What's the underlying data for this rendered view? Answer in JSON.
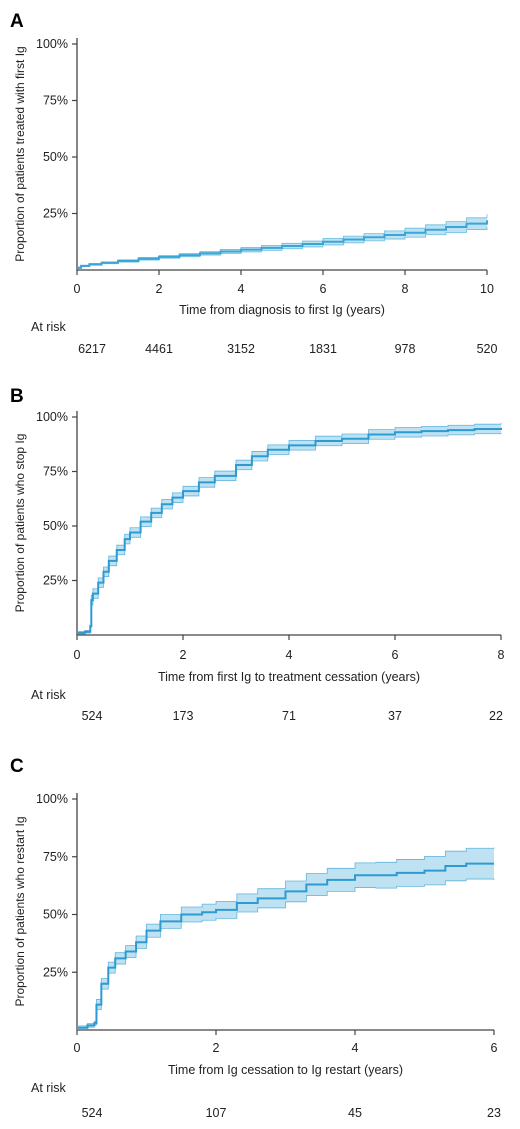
{
  "chart_data": [
    {
      "id": "A",
      "type": "line",
      "panel_label": "A",
      "xlabel": "Time from diagnosis to first Ig (years)",
      "ylabel": "Proportion of patients treated with first Ig",
      "xlim": [
        0,
        10
      ],
      "ylim": [
        0,
        1
      ],
      "xticks": [
        0,
        2,
        4,
        6,
        8,
        10
      ],
      "xtick_labels": [
        "0",
        "2",
        "4",
        "6",
        "8",
        "10"
      ],
      "yticks": [
        0.25,
        0.5,
        0.75,
        1.0
      ],
      "ytick_labels": [
        "25%",
        "50%",
        "75%",
        "100%"
      ],
      "grid": false,
      "line_color": "#3aa6d6",
      "band_color": "#a9d8ef",
      "series": [
        {
          "x": [
            0,
            0.1,
            0.3,
            0.6,
            1.0,
            1.5,
            2.0,
            2.5,
            3.0,
            3.5,
            4.0,
            4.5,
            5.0,
            5.5,
            6.0,
            6.5,
            7.0,
            7.5,
            8.0,
            8.5,
            9.0,
            9.5,
            10.0
          ],
          "y": [
            0.01,
            0.018,
            0.025,
            0.032,
            0.04,
            0.05,
            0.058,
            0.066,
            0.074,
            0.082,
            0.09,
            0.098,
            0.106,
            0.115,
            0.125,
            0.135,
            0.145,
            0.155,
            0.165,
            0.178,
            0.19,
            0.205,
            0.22
          ],
          "lower": [
            0.007,
            0.015,
            0.021,
            0.028,
            0.035,
            0.044,
            0.052,
            0.059,
            0.066,
            0.073,
            0.08,
            0.087,
            0.094,
            0.102,
            0.111,
            0.12,
            0.129,
            0.137,
            0.145,
            0.156,
            0.166,
            0.179,
            0.192
          ],
          "upper": [
            0.013,
            0.021,
            0.029,
            0.036,
            0.045,
            0.056,
            0.064,
            0.073,
            0.082,
            0.091,
            0.1,
            0.109,
            0.118,
            0.128,
            0.139,
            0.15,
            0.161,
            0.173,
            0.185,
            0.2,
            0.214,
            0.231,
            0.248
          ]
        }
      ],
      "at_risk": {
        "title": "At risk",
        "times": [
          0,
          2,
          4,
          6,
          8,
          10
        ],
        "values": [
          "6217",
          "4461",
          "3152",
          "1831",
          "978",
          "520"
        ]
      }
    },
    {
      "id": "B",
      "type": "line",
      "panel_label": "B",
      "xlabel": "Time from first Ig to treatment cessation (years)",
      "ylabel": "Proportion of patients who stop Ig",
      "xlim": [
        0,
        8
      ],
      "ylim": [
        0,
        1
      ],
      "xticks": [
        0,
        2,
        4,
        6,
        8
      ],
      "xtick_labels": [
        "0",
        "2",
        "4",
        "6",
        "8"
      ],
      "yticks": [
        0.25,
        0.5,
        0.75,
        1.0
      ],
      "ytick_labels": [
        "25%",
        "50%",
        "75%",
        "100%"
      ],
      "grid": false,
      "line_color": "#2d9bd2",
      "band_color": "#a9d8ef",
      "series": [
        {
          "x": [
            0,
            0.15,
            0.25,
            0.27,
            0.3,
            0.4,
            0.5,
            0.6,
            0.75,
            0.9,
            1.0,
            1.2,
            1.4,
            1.6,
            1.8,
            2.0,
            2.3,
            2.6,
            3.0,
            3.3,
            3.6,
            4.0,
            4.5,
            5.0,
            5.5,
            6.0,
            6.5,
            7.0,
            7.5,
            8.0
          ],
          "y": [
            0.01,
            0.015,
            0.04,
            0.16,
            0.19,
            0.24,
            0.29,
            0.34,
            0.39,
            0.44,
            0.47,
            0.52,
            0.56,
            0.6,
            0.63,
            0.66,
            0.7,
            0.73,
            0.78,
            0.82,
            0.85,
            0.87,
            0.89,
            0.9,
            0.92,
            0.93,
            0.935,
            0.94,
            0.945,
            0.95
          ]
        }
      ],
      "band_halfwidth": 0.022,
      "at_risk": {
        "title": "At risk",
        "times": [
          0,
          2,
          4,
          6,
          8
        ],
        "values": [
          "524",
          "173",
          "71",
          "37",
          "22"
        ]
      }
    },
    {
      "id": "C",
      "type": "line",
      "panel_label": "C",
      "xlabel": "Time from Ig cessation to Ig restart (years)",
      "ylabel": "Proportion of patients who restart Ig",
      "xlim": [
        0,
        6
      ],
      "ylim": [
        0,
        1
      ],
      "xticks": [
        0,
        2,
        4,
        6
      ],
      "xtick_labels": [
        "0",
        "2",
        "4",
        "6"
      ],
      "yticks": [
        0.25,
        0.5,
        0.75,
        1.0
      ],
      "ytick_labels": [
        "25%",
        "50%",
        "75%",
        "100%"
      ],
      "grid": false,
      "line_color": "#2d9bd2",
      "band_color": "#a9d8ef",
      "series": [
        {
          "x": [
            0,
            0.15,
            0.25,
            0.28,
            0.35,
            0.45,
            0.55,
            0.7,
            0.85,
            1.0,
            1.2,
            1.5,
            1.8,
            2.0,
            2.3,
            2.6,
            3.0,
            3.3,
            3.6,
            4.0,
            4.3,
            4.6,
            5.0,
            5.3,
            5.6,
            6.0
          ],
          "y": [
            0.01,
            0.02,
            0.03,
            0.11,
            0.2,
            0.27,
            0.31,
            0.34,
            0.38,
            0.43,
            0.47,
            0.5,
            0.51,
            0.52,
            0.55,
            0.57,
            0.6,
            0.63,
            0.65,
            0.67,
            0.67,
            0.68,
            0.69,
            0.71,
            0.72,
            0.72
          ]
        }
      ],
      "band_halfwidth_start": 0.02,
      "band_halfwidth_end": 0.07,
      "at_risk": {
        "title": "At risk",
        "times": [
          0,
          2,
          4,
          6
        ],
        "values": [
          "524",
          "107",
          "45",
          "23"
        ]
      }
    }
  ]
}
